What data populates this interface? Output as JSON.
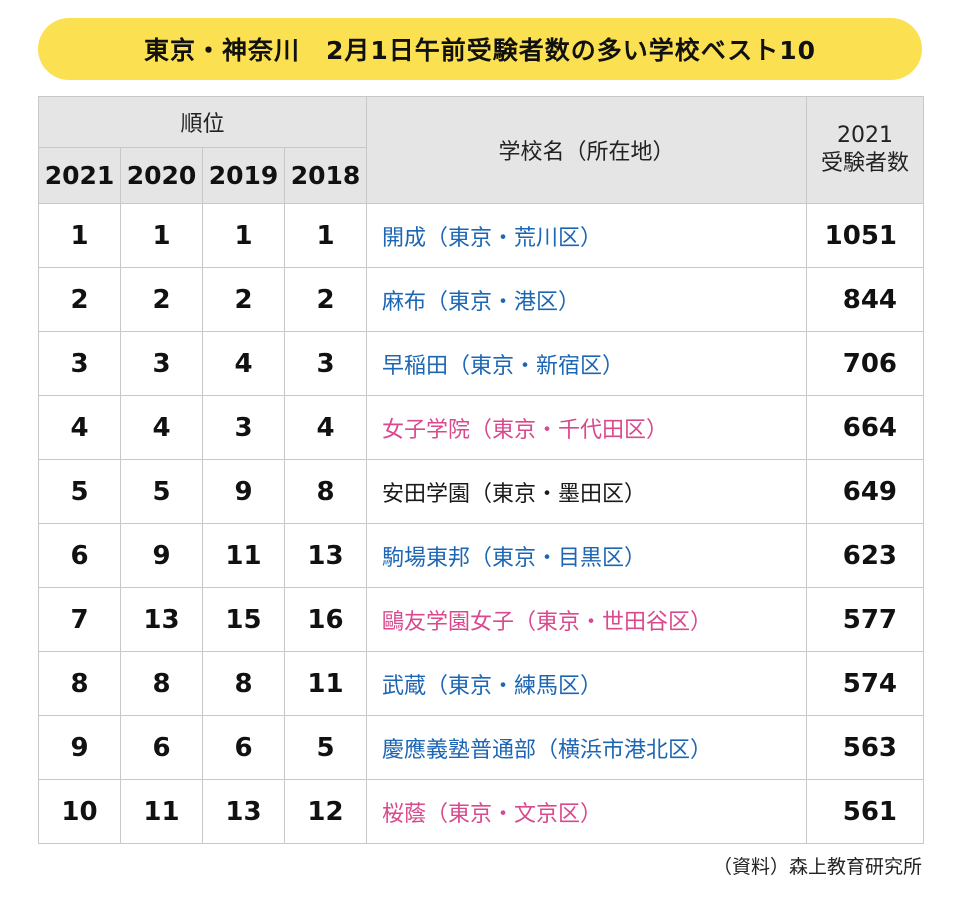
{
  "title": "東京・神奈川　2月1日午前受験者数の多い学校ベスト10",
  "header": {
    "rank_group": "順位",
    "years": [
      "2021",
      "2020",
      "2019",
      "2018"
    ],
    "school": "学校名（所在地）",
    "count_line1": "2021",
    "count_line2": "受験者数"
  },
  "rows": [
    {
      "r2021": "1",
      "r2020": "1",
      "r2019": "1",
      "r2018": "1",
      "school": "開成（東京・荒川区）",
      "count": "1051",
      "color": "#1d66b4"
    },
    {
      "r2021": "2",
      "r2020": "2",
      "r2019": "2",
      "r2018": "2",
      "school": "麻布（東京・港区）",
      "count": "844",
      "color": "#1d66b4"
    },
    {
      "r2021": "3",
      "r2020": "3",
      "r2019": "4",
      "r2018": "3",
      "school": "早稲田（東京・新宿区）",
      "count": "706",
      "color": "#1d66b4"
    },
    {
      "r2021": "4",
      "r2020": "4",
      "r2019": "3",
      "r2018": "4",
      "school": "女子学院（東京・千代田区）",
      "count": "664",
      "color": "#d9498d"
    },
    {
      "r2021": "5",
      "r2020": "5",
      "r2019": "9",
      "r2018": "8",
      "school": "安田学園（東京・墨田区）",
      "count": "649",
      "color": "#1a1a1a"
    },
    {
      "r2021": "6",
      "r2020": "9",
      "r2019": "11",
      "r2018": "13",
      "school": "駒場東邦（東京・目黒区）",
      "count": "623",
      "color": "#1d66b4"
    },
    {
      "r2021": "7",
      "r2020": "13",
      "r2019": "15",
      "r2018": "16",
      "school": "鷗友学園女子（東京・世田谷区）",
      "count": "577",
      "color": "#d9498d"
    },
    {
      "r2021": "8",
      "r2020": "8",
      "r2019": "8",
      "r2018": "11",
      "school": "武蔵（東京・練馬区）",
      "count": "574",
      "color": "#1d66b4"
    },
    {
      "r2021": "9",
      "r2020": "6",
      "r2019": "6",
      "r2018": "5",
      "school": "慶應義塾普通部（横浜市港北区）",
      "count": "563",
      "color": "#1d66b4"
    },
    {
      "r2021": "10",
      "r2020": "11",
      "r2019": "13",
      "r2018": "12",
      "school": "桜蔭（東京・文京区）",
      "count": "561",
      "color": "#d9498d"
    }
  ],
  "source": "（資料）森上教育研究所",
  "colors": {
    "title_bg": "#fbe151",
    "header_bg": "#e5e5e5",
    "boys_school": "#1d66b4",
    "girls_school": "#d9498d",
    "coed_school": "#1a1a1a"
  }
}
